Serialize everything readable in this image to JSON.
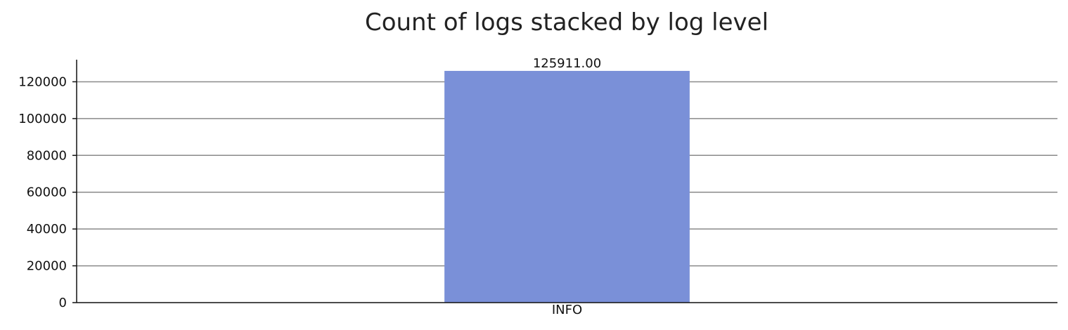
{
  "chart_data": {
    "type": "bar",
    "title": "Count of logs stacked by log level",
    "xlabel": "",
    "ylabel": "",
    "categories": [
      "INFO"
    ],
    "series": [
      {
        "values": [
          125911
        ],
        "color": "#7a90d8"
      }
    ],
    "data_labels": [
      "125911.00"
    ],
    "ylim": [
      0,
      132000
    ],
    "yticks": [
      0,
      20000,
      40000,
      60000,
      80000,
      100000,
      120000
    ],
    "ytick_labels": [
      "0",
      "20000",
      "40000",
      "60000",
      "80000",
      "100000",
      "120000"
    ],
    "grid": "horizontal",
    "legend": "none"
  }
}
